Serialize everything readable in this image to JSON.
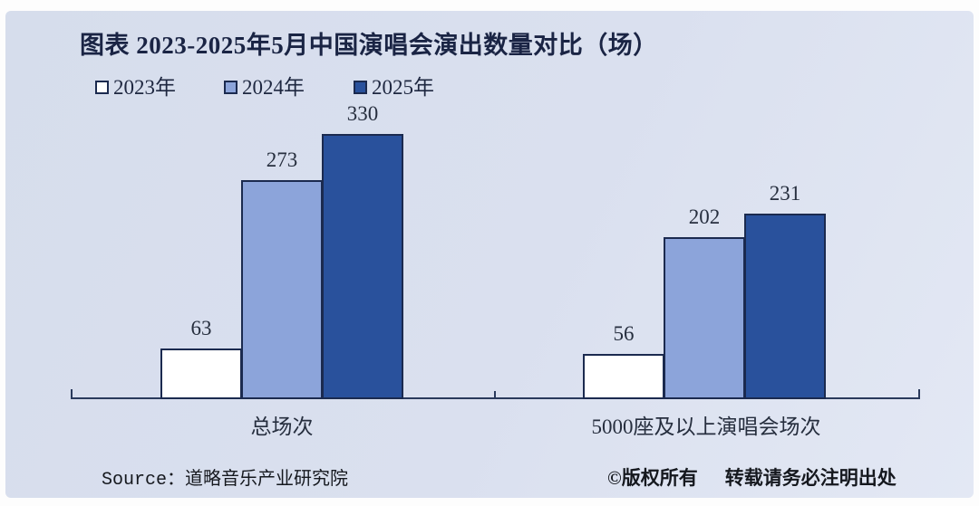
{
  "title": "图表 2023-2025年5月中国演唱会演出数量对比（场）",
  "legend": [
    {
      "label": "2023年",
      "color": "#ffffff"
    },
    {
      "label": "2024年",
      "color": "#8ca4da"
    },
    {
      "label": "2025年",
      "color": "#29519c"
    }
  ],
  "chart_data": {
    "type": "bar",
    "title": "图表 2023-2025年5月中国演唱会演出数量对比（场）",
    "categories": [
      "总场次",
      "5000座及以上演唱会场次"
    ],
    "series": [
      {
        "name": "2023年",
        "color": "#ffffff",
        "values": [
          63,
          56
        ]
      },
      {
        "name": "2024年",
        "color": "#8ca4da",
        "values": [
          273,
          202
        ]
      },
      {
        "name": "2025年",
        "color": "#29519c",
        "values": [
          330,
          231
        ]
      }
    ],
    "xlabel": "",
    "ylabel": "",
    "ylim": [
      0,
      370
    ],
    "grid": false,
    "data_labels": true,
    "legend_position": "top-left",
    "bar_outline_color": "#1b2a4f",
    "axis_color": "#2a3a5c",
    "background_color": "#d9e0ee"
  },
  "footer": {
    "source": "Source：道略音乐产业研究院",
    "copyright_part1": "©版权所有",
    "copyright_part2": "转载请务必注明出处"
  }
}
